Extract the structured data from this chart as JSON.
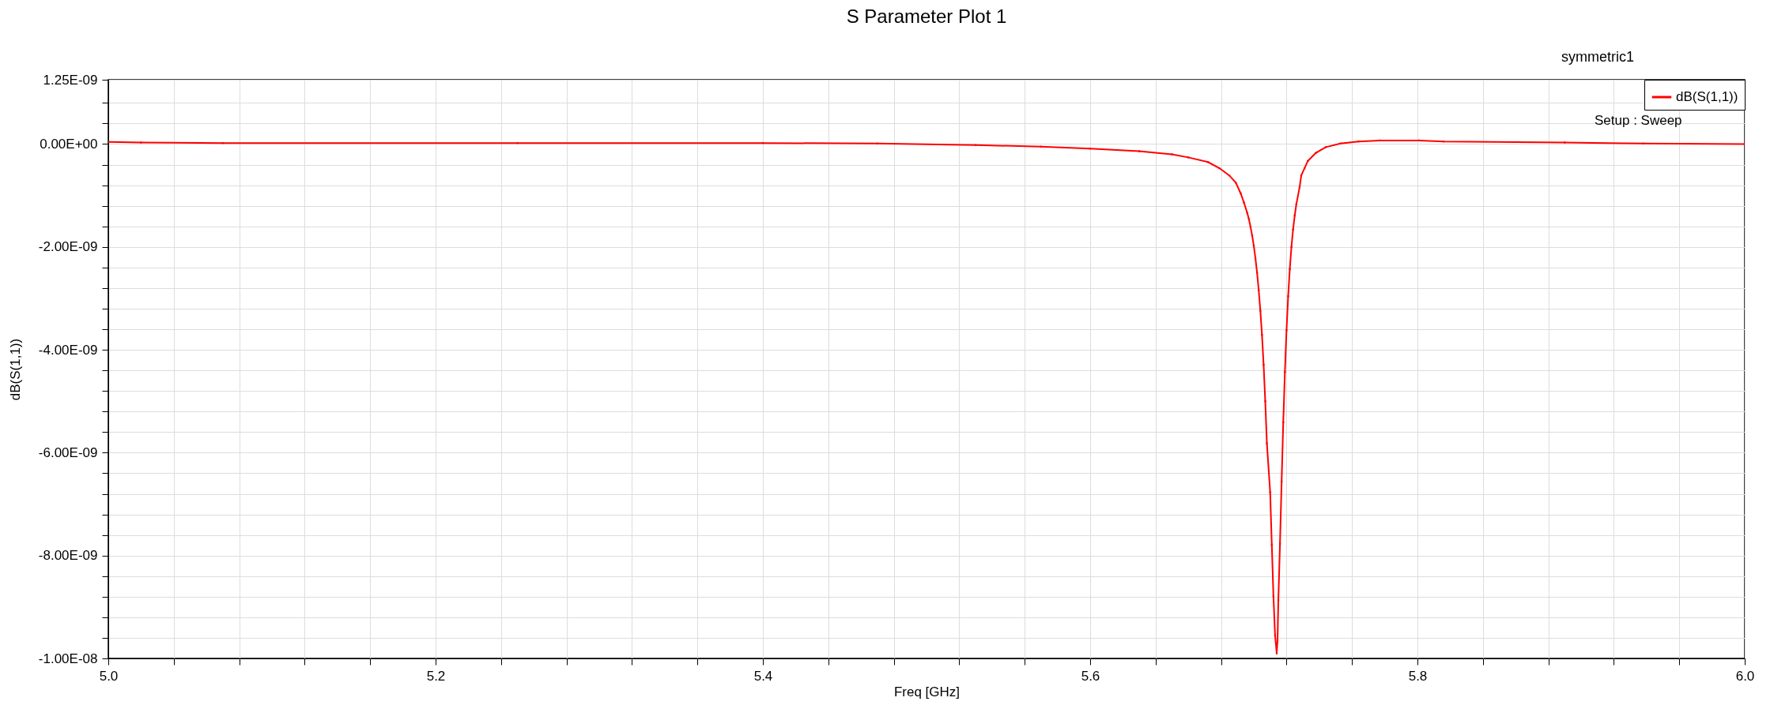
{
  "chart_data": {
    "type": "line",
    "title": "S Parameter Plot 1",
    "xlabel": "Freq [GHz]",
    "ylabel": "dB(S(1,1))",
    "annotations": [
      "symmetric1",
      "Setup : Sweep"
    ],
    "x": [
      5.0,
      5.02,
      5.07,
      5.25,
      5.4,
      5.47,
      5.53,
      5.57,
      5.6,
      5.63,
      5.65,
      5.66,
      5.672,
      5.679,
      5.685,
      5.689,
      5.692,
      5.694,
      5.696,
      5.697,
      5.698,
      5.699,
      5.7,
      5.701,
      5.702,
      5.703,
      5.704,
      5.705,
      5.706,
      5.707,
      5.708,
      5.71,
      5.711,
      5.712,
      5.713,
      5.714,
      5.7145,
      5.715,
      5.716,
      5.717,
      5.718,
      5.719,
      5.72,
      5.721,
      5.722,
      5.723,
      5.724,
      5.725,
      5.726,
      5.728,
      5.729,
      5.731,
      5.733,
      5.738,
      5.744,
      5.753,
      5.764,
      5.777,
      5.801,
      5.816,
      5.89,
      5.938,
      6.0
    ],
    "series": [
      {
        "name": "dB(S(1,1))",
        "color": "#ff0000",
        "values": [
          4e-11,
          3e-11,
          2e-11,
          2e-11,
          2e-11,
          1e-11,
          -2e-11,
          -5e-11,
          -9e-11,
          -1.4e-10,
          -2e-10,
          -2.6e-10,
          -3.5e-10,
          -4.7e-10,
          -6.1e-10,
          -7.5e-10,
          -9.6e-10,
          -1.14e-09,
          -1.34e-09,
          -1.46e-09,
          -1.61e-09,
          -1.78e-09,
          -1.98e-09,
          -2.22e-09,
          -2.5e-09,
          -2.84e-09,
          -3.24e-09,
          -3.71e-09,
          -4.29e-09,
          -5e-09,
          -5.82e-09,
          -6.77e-09,
          -7.79e-09,
          -8.79e-09,
          -9.55e-09,
          -9.9e-09,
          -9.65e-09,
          -8.87e-09,
          -7.77e-09,
          -6.56e-09,
          -5.41e-09,
          -4.43e-09,
          -3.62e-09,
          -2.96e-09,
          -2.43e-09,
          -2e-09,
          -1.66e-09,
          -1.39e-09,
          -1.17e-09,
          -8.4e-10,
          -6.1e-10,
          -4.7e-10,
          -3.3e-10,
          -1.7e-10,
          -6e-11,
          1e-11,
          5e-11,
          7e-11,
          7e-11,
          5e-11,
          3e-11,
          1e-11,
          0
        ]
      }
    ],
    "xlim": [
      5.0,
      6.0
    ],
    "ylim": [
      -1e-08,
      1.25e-09
    ],
    "xticks": [
      {
        "value": 5.0,
        "label": "5.0"
      },
      {
        "value": 5.04,
        "label": null
      },
      {
        "value": 5.08,
        "label": null
      },
      {
        "value": 5.12,
        "label": null
      },
      {
        "value": 5.16,
        "label": null
      },
      {
        "value": 5.2,
        "label": "5.2"
      },
      {
        "value": 5.24,
        "label": null
      },
      {
        "value": 5.28,
        "label": null
      },
      {
        "value": 5.32,
        "label": null
      },
      {
        "value": 5.36,
        "label": null
      },
      {
        "value": 5.4,
        "label": "5.4"
      },
      {
        "value": 5.44,
        "label": null
      },
      {
        "value": 5.48,
        "label": null
      },
      {
        "value": 5.52,
        "label": null
      },
      {
        "value": 5.56,
        "label": null
      },
      {
        "value": 5.6,
        "label": "5.6"
      },
      {
        "value": 5.64,
        "label": null
      },
      {
        "value": 5.68,
        "label": null
      },
      {
        "value": 5.72,
        "label": null
      },
      {
        "value": 5.76,
        "label": null
      },
      {
        "value": 5.8,
        "label": "5.8"
      },
      {
        "value": 5.84,
        "label": null
      },
      {
        "value": 5.88,
        "label": null
      },
      {
        "value": 5.92,
        "label": null
      },
      {
        "value": 5.96,
        "label": null
      },
      {
        "value": 6.0,
        "label": "6.0"
      }
    ],
    "yticks": [
      {
        "value": 1.25e-09,
        "label": "1.25E-09"
      },
      {
        "value": 8e-10,
        "label": null
      },
      {
        "value": 4e-10,
        "label": null
      },
      {
        "value": 0,
        "label": "0.00E+00"
      },
      {
        "value": -4e-10,
        "label": null
      },
      {
        "value": -8e-10,
        "label": null
      },
      {
        "value": -1.2e-09,
        "label": null
      },
      {
        "value": -1.6e-09,
        "label": null
      },
      {
        "value": -2e-09,
        "label": "-2.00E-09"
      },
      {
        "value": -2.4e-09,
        "label": null
      },
      {
        "value": -2.8e-09,
        "label": null
      },
      {
        "value": -3.2e-09,
        "label": null
      },
      {
        "value": -3.6e-09,
        "label": null
      },
      {
        "value": -4e-09,
        "label": "-4.00E-09"
      },
      {
        "value": -4.4e-09,
        "label": null
      },
      {
        "value": -4.8e-09,
        "label": null
      },
      {
        "value": -5.2e-09,
        "label": null
      },
      {
        "value": -5.6e-09,
        "label": null
      },
      {
        "value": -6e-09,
        "label": "-6.00E-09"
      },
      {
        "value": -6.4e-09,
        "label": null
      },
      {
        "value": -6.8e-09,
        "label": null
      },
      {
        "value": -7.2e-09,
        "label": null
      },
      {
        "value": -7.6e-09,
        "label": null
      },
      {
        "value": -8e-09,
        "label": "-8.00E-09"
      },
      {
        "value": -8.4e-09,
        "label": null
      },
      {
        "value": -8.8e-09,
        "label": null
      },
      {
        "value": -9.2e-09,
        "label": null
      },
      {
        "value": -9.6e-09,
        "label": null
      },
      {
        "value": -1e-08,
        "label": "-1.00E-08"
      }
    ],
    "grid": true,
    "legend": "top right",
    "marker": "square",
    "line_style": "solid"
  }
}
